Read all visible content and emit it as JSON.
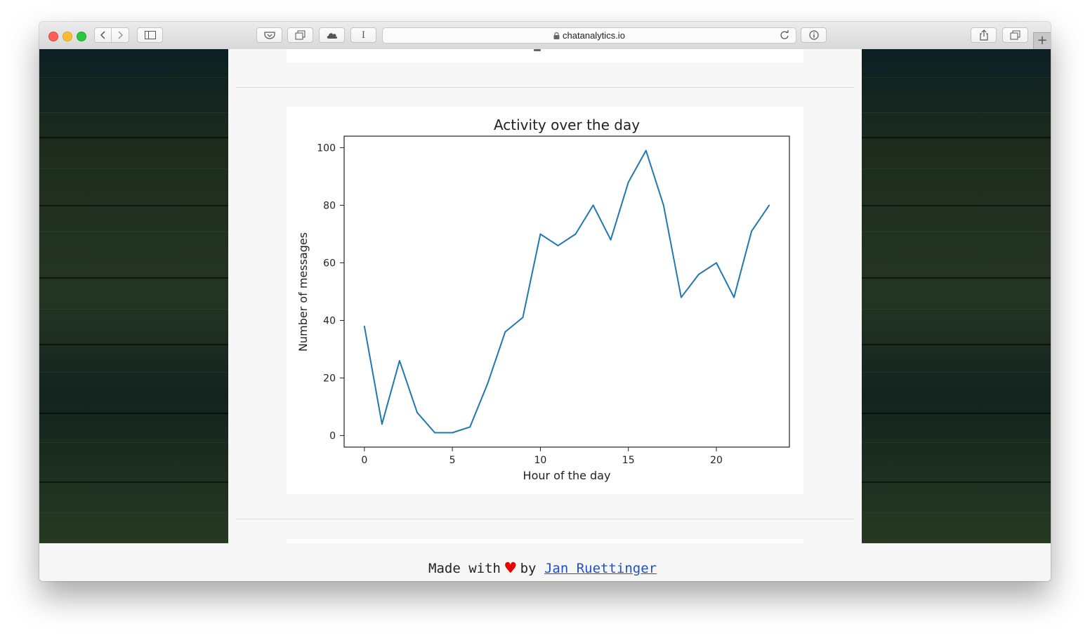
{
  "browser": {
    "url": "chatanalytics.io",
    "new_tab_glyph": "+",
    "reader_glyph": "I",
    "icons": [
      "back-icon",
      "forward-icon",
      "sidebar-icon",
      "pocket-icon",
      "tabs-icon",
      "cloud-icon",
      "reader-icon",
      "lock-icon",
      "reload-icon",
      "info-icon",
      "share-icon",
      "tab-overview-icon",
      "new-tab-icon"
    ]
  },
  "footer": {
    "prefix": "Made with",
    "heart": "♥",
    "by": "by",
    "author": "Jan Ruettinger",
    "heart_color": "#ee0000",
    "link_color": "#1f4fcf"
  },
  "chart_data": {
    "type": "line",
    "title": "Activity over the day",
    "xlabel": "Hour of the day",
    "ylabel": "Number of messages",
    "x": [
      0,
      1,
      2,
      3,
      4,
      5,
      6,
      7,
      8,
      9,
      10,
      11,
      12,
      13,
      14,
      15,
      16,
      17,
      18,
      19,
      20,
      21,
      22,
      23
    ],
    "series": [
      {
        "values": [
          38,
          4,
          26,
          8,
          1,
          1,
          3,
          18,
          36,
          41,
          70,
          66,
          70,
          80,
          68,
          88,
          99,
          80,
          48,
          56,
          60,
          48,
          71,
          80
        ],
        "color": "#1f77b4"
      }
    ],
    "xlim": [
      -1.15,
      24.15
    ],
    "ylim": [
      -4,
      104
    ],
    "xticks": [
      0,
      5,
      10,
      15,
      20
    ],
    "yticks": [
      0,
      20,
      40,
      60,
      80,
      100
    ],
    "grid": false,
    "legend": "none"
  }
}
